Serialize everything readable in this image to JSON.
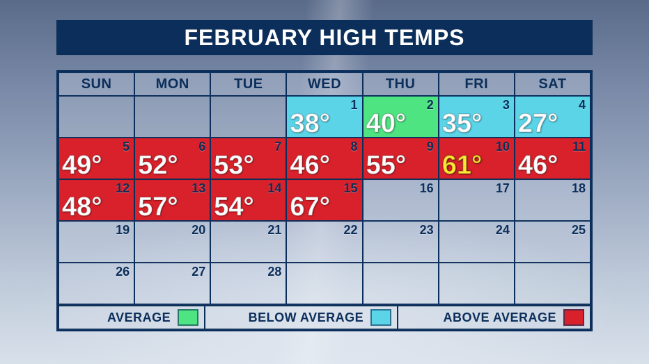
{
  "title": "FEBRUARY HIGH TEMPS",
  "headers": [
    "SUN",
    "MON",
    "TUE",
    "WED",
    "THU",
    "FRI",
    "SAT"
  ],
  "legend": {
    "average_label": "AVERAGE",
    "below_label": "BELOW AVERAGE",
    "above_label": "ABOVE AVERAGE",
    "average_color": "#4ee481",
    "below_color": "#5bd4e8",
    "above_color": "#d8212a"
  },
  "colors": {
    "border": "#0b2e5a",
    "title_bg": "#0b2e5a",
    "title_text": "#ffffff",
    "date_text": "#0b2e5a",
    "temp_text": "#ffffff",
    "temp_highlight": "#ffe735"
  },
  "weeks": [
    [
      {
        "date": null,
        "temp": null,
        "category": "empty"
      },
      {
        "date": null,
        "temp": null,
        "category": "empty"
      },
      {
        "date": null,
        "temp": null,
        "category": "empty"
      },
      {
        "date": 1,
        "temp": "38°",
        "category": "below"
      },
      {
        "date": 2,
        "temp": "40°",
        "category": "average"
      },
      {
        "date": 3,
        "temp": "35°",
        "category": "below"
      },
      {
        "date": 4,
        "temp": "27°",
        "category": "below"
      }
    ],
    [
      {
        "date": 5,
        "temp": "49°",
        "category": "above"
      },
      {
        "date": 6,
        "temp": "52°",
        "category": "above"
      },
      {
        "date": 7,
        "temp": "53°",
        "category": "above"
      },
      {
        "date": 8,
        "temp": "46°",
        "category": "above"
      },
      {
        "date": 9,
        "temp": "55°",
        "category": "above"
      },
      {
        "date": 10,
        "temp": "61°",
        "category": "above",
        "highlight": true
      },
      {
        "date": 11,
        "temp": "46°",
        "category": "above"
      }
    ],
    [
      {
        "date": 12,
        "temp": "48°",
        "category": "above"
      },
      {
        "date": 13,
        "temp": "57°",
        "category": "above"
      },
      {
        "date": 14,
        "temp": "54°",
        "category": "above"
      },
      {
        "date": 15,
        "temp": "67°",
        "category": "above"
      },
      {
        "date": 16,
        "temp": null,
        "category": "none"
      },
      {
        "date": 17,
        "temp": null,
        "category": "none"
      },
      {
        "date": 18,
        "temp": null,
        "category": "none"
      }
    ],
    [
      {
        "date": 19,
        "temp": null,
        "category": "none"
      },
      {
        "date": 20,
        "temp": null,
        "category": "none"
      },
      {
        "date": 21,
        "temp": null,
        "category": "none"
      },
      {
        "date": 22,
        "temp": null,
        "category": "none"
      },
      {
        "date": 23,
        "temp": null,
        "category": "none"
      },
      {
        "date": 24,
        "temp": null,
        "category": "none"
      },
      {
        "date": 25,
        "temp": null,
        "category": "none"
      }
    ],
    [
      {
        "date": 26,
        "temp": null,
        "category": "none"
      },
      {
        "date": 27,
        "temp": null,
        "category": "none"
      },
      {
        "date": 28,
        "temp": null,
        "category": "none"
      },
      {
        "date": null,
        "temp": null,
        "category": "empty"
      },
      {
        "date": null,
        "temp": null,
        "category": "empty"
      },
      {
        "date": null,
        "temp": null,
        "category": "empty"
      },
      {
        "date": null,
        "temp": null,
        "category": "empty"
      }
    ]
  ]
}
